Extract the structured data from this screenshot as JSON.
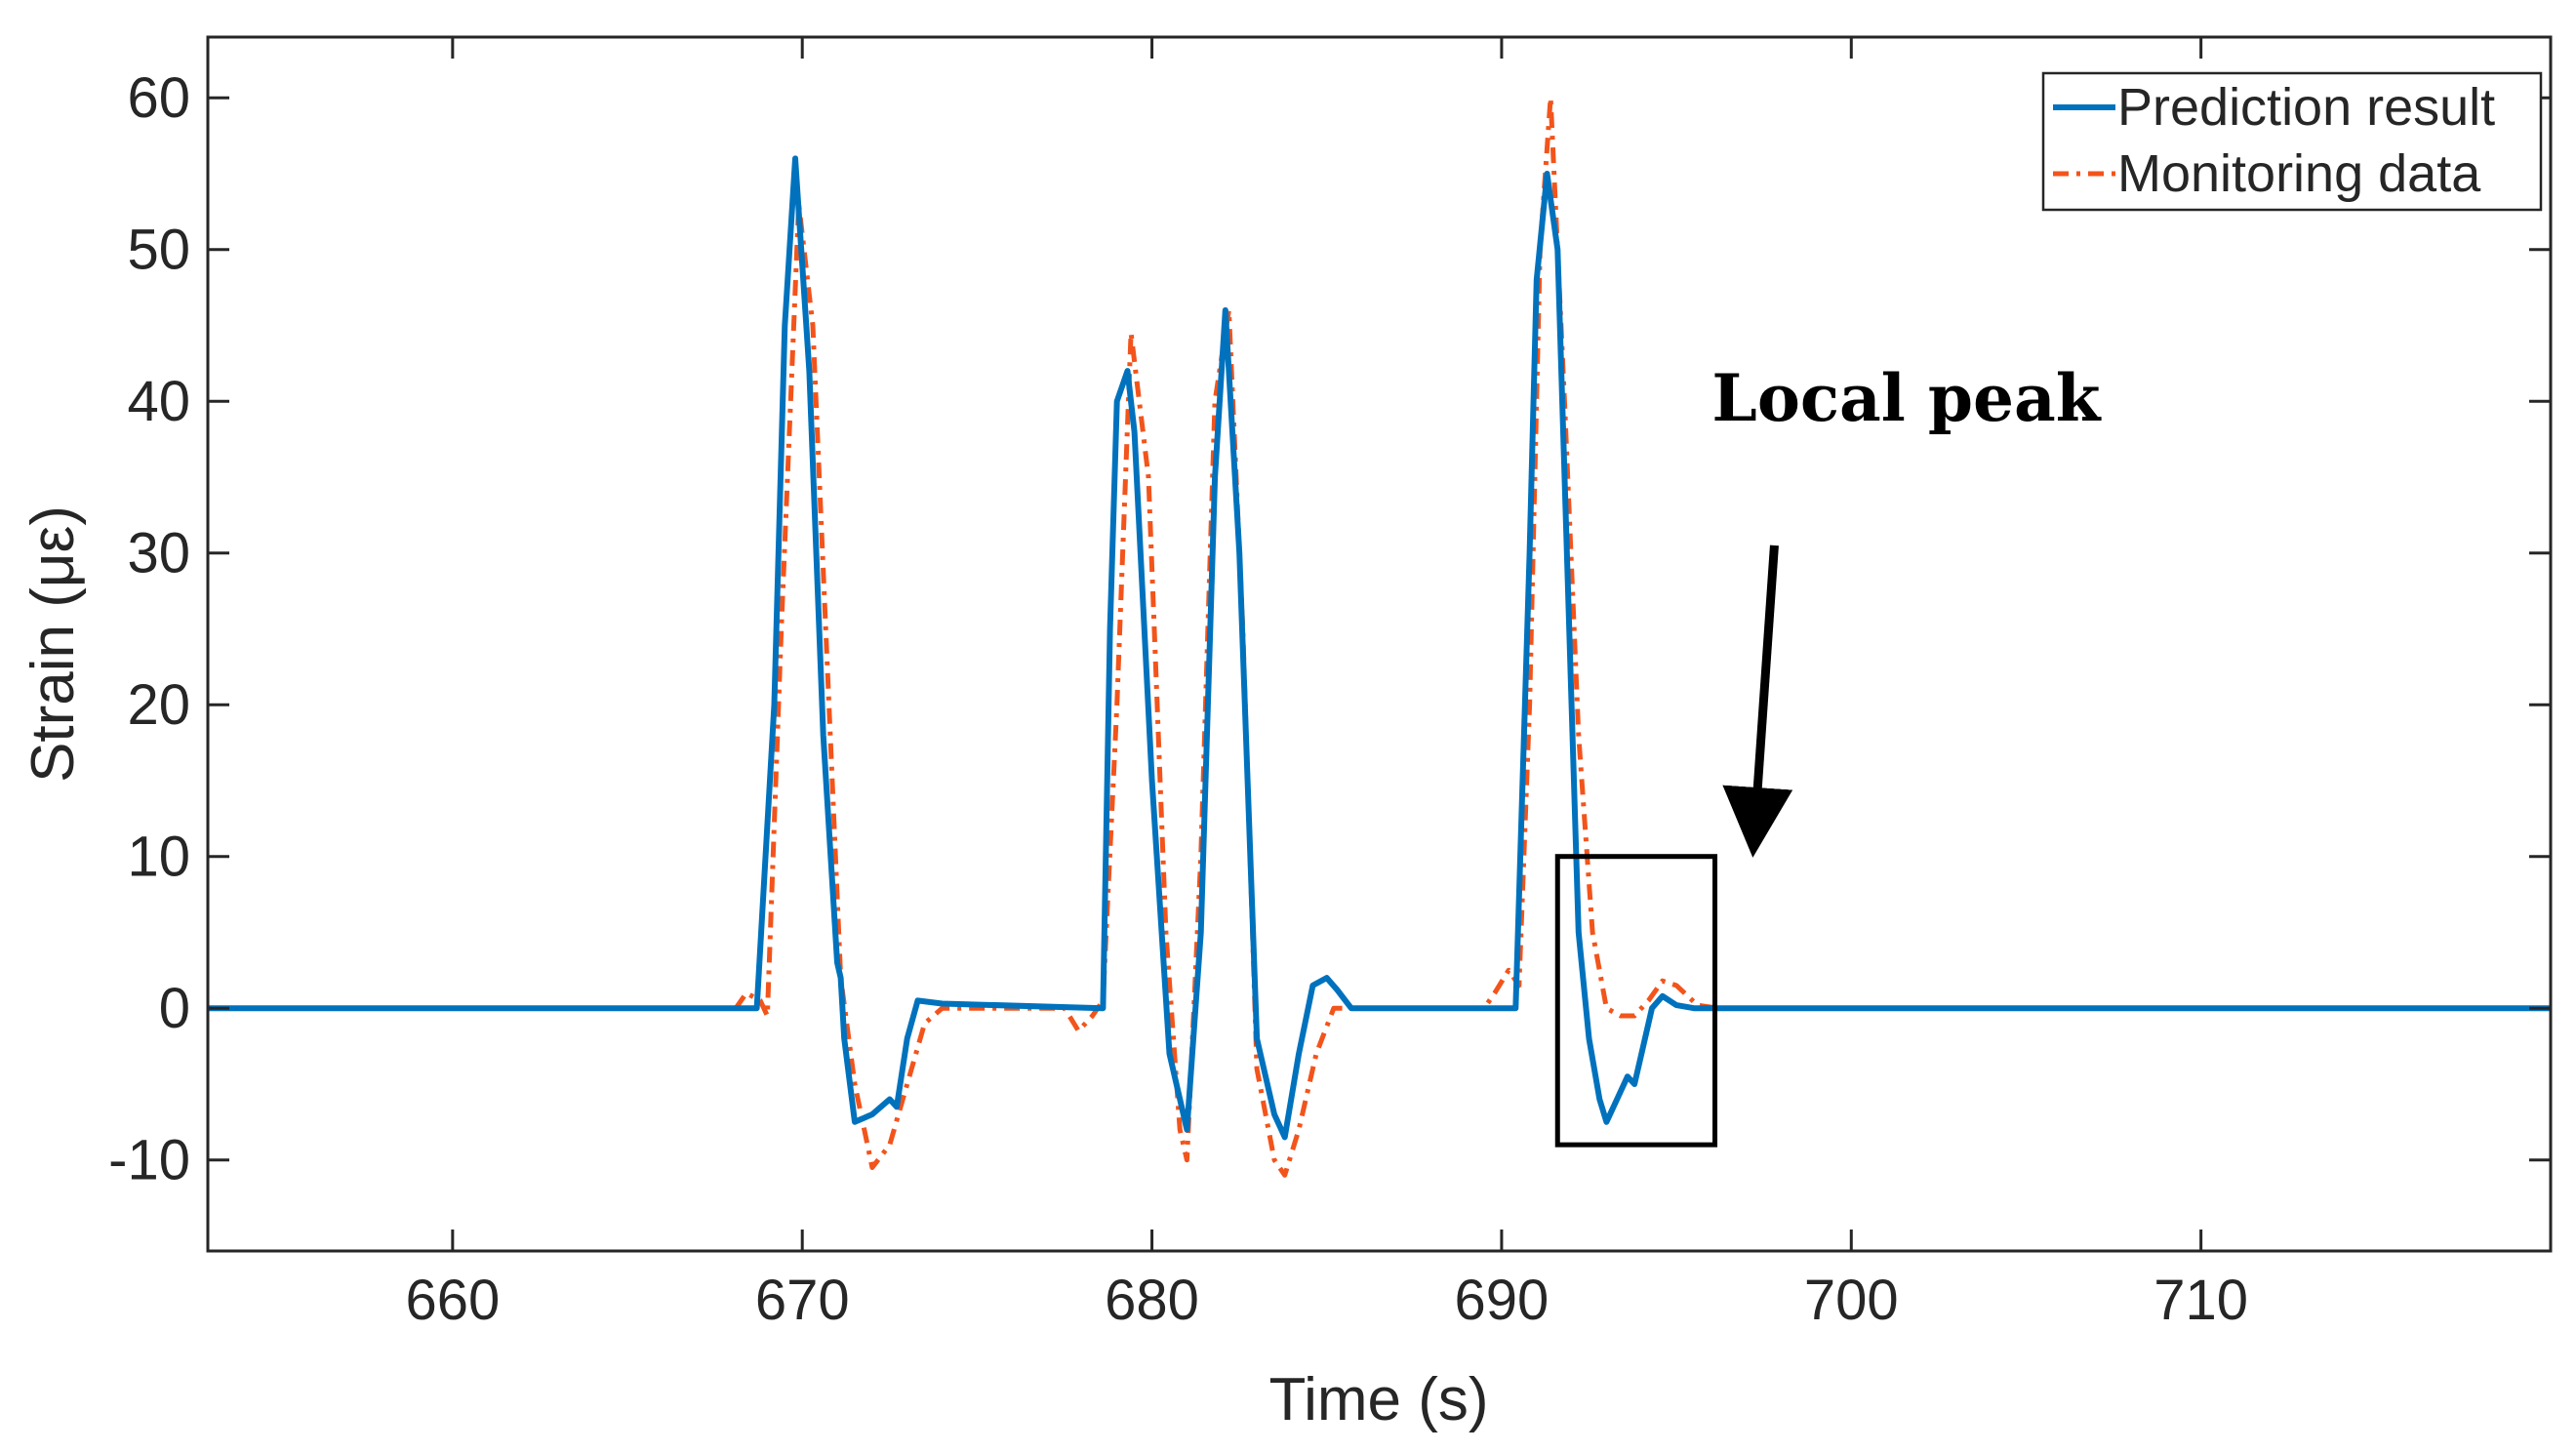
{
  "chart_data": {
    "type": "line",
    "title": "",
    "xlabel": "Time (s)",
    "ylabel": "Strain (με)",
    "xlim": [
      653,
      720
    ],
    "ylim": [
      -16,
      64
    ],
    "xticks": [
      660,
      670,
      680,
      690,
      700,
      710
    ],
    "yticks": [
      -10,
      0,
      10,
      20,
      30,
      40,
      50,
      60
    ],
    "grid": false,
    "legend_position": "top-right",
    "colors": {
      "prediction": "#0072BD",
      "monitoring": "#F2541B",
      "axis": "#262626"
    },
    "series": [
      {
        "name": "Prediction result",
        "style": "solid",
        "x": [
          653,
          668.7,
          669.2,
          669.5,
          669.8,
          670.2,
          670.6,
          671.0,
          671.1,
          671.2,
          671.5,
          672.0,
          672.5,
          672.7,
          673.0,
          673.3,
          674.0,
          678.6,
          678.8,
          679.0,
          679.3,
          679.5,
          680.0,
          680.5,
          681.0,
          681.4,
          681.8,
          682.1,
          682.5,
          683.0,
          683.5,
          683.8,
          684.2,
          684.6,
          685.0,
          685.3,
          685.7,
          686.0,
          690.4,
          690.8,
          691.0,
          691.3,
          691.6,
          692.0,
          692.2,
          692.5,
          692.8,
          693.0,
          693.3,
          693.6,
          693.8,
          694.0,
          694.3,
          694.6,
          695.0,
          695.5,
          720
        ],
        "y": [
          0,
          0,
          20,
          45,
          56,
          42,
          18,
          3,
          2,
          -2,
          -7.5,
          -7,
          -6,
          -6.5,
          -2,
          0.5,
          0.3,
          0,
          25,
          40,
          42,
          38,
          15,
          -3,
          -8,
          5,
          35,
          46,
          30,
          -2,
          -7,
          -8.5,
          -3,
          1.5,
          2,
          1.2,
          0,
          0,
          0,
          30,
          48,
          55,
          50,
          20,
          5,
          -2,
          -6,
          -7.5,
          -6,
          -4.5,
          -5,
          -3,
          0,
          0.8,
          0.2,
          0,
          0
        ]
      },
      {
        "name": "Monitoring data",
        "style": "dash-dot",
        "x": [
          653,
          668.1,
          668.4,
          668.8,
          669.0,
          669.4,
          669.9,
          670.3,
          670.8,
          671.1,
          671.5,
          672.0,
          672.5,
          673.0,
          673.5,
          674.0,
          677.5,
          677.9,
          678.3,
          678.6,
          679.0,
          679.4,
          679.9,
          680.4,
          680.8,
          681.0,
          681.4,
          681.8,
          682.2,
          682.6,
          683.0,
          683.5,
          683.8,
          684.2,
          684.7,
          685.2,
          686.0,
          689.5,
          689.8,
          690.2,
          690.5,
          690.8,
          691.1,
          691.4,
          691.8,
          692.2,
          692.6,
          693.0,
          693.4,
          693.8,
          694.2,
          694.6,
          695.0,
          695.6,
          696.2,
          720
        ],
        "y": [
          0,
          0,
          1,
          0.5,
          -0.5,
          25,
          53,
          45,
          18,
          2,
          -5,
          -10.5,
          -9,
          -5,
          -1,
          0,
          0,
          -1.5,
          -0.5,
          0.5,
          20,
          44.5,
          35,
          5,
          -8,
          -10,
          10,
          40,
          46,
          25,
          -4,
          -10,
          -11,
          -8,
          -3,
          0,
          0,
          0,
          1,
          2.5,
          1.5,
          20,
          50,
          60,
          40,
          18,
          5,
          0,
          -0.5,
          -0.5,
          0.5,
          1.8,
          1.5,
          0.2,
          0,
          0
        ]
      }
    ],
    "annotations": [
      {
        "text": "Local peak",
        "arrow_from": [
          697.8,
          30.5
        ],
        "arrow_to": [
          697.2,
          10.5
        ]
      },
      {
        "shape": "rectangle",
        "x0": 691.6,
        "x1": 696.1,
        "y0": -9,
        "y1": 10
      }
    ]
  }
}
